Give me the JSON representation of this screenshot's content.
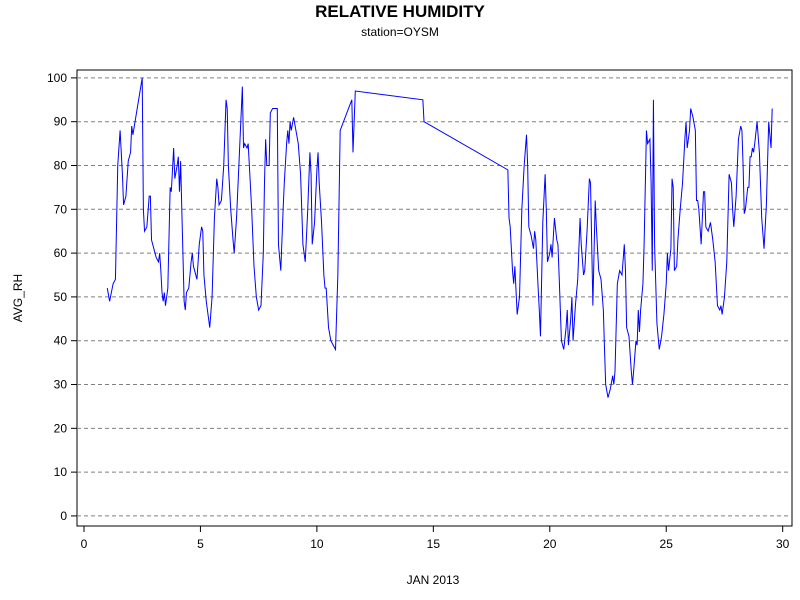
{
  "chart_data": {
    "type": "line",
    "title": "RELATIVE HUMIDITY",
    "subtitle": "station=OYSM",
    "x_label": "JAN 2013",
    "y_label": "AVG_RH",
    "xlim": [
      -0.3,
      30.4
    ],
    "ylim": [
      -2.3,
      101.8
    ],
    "xticks": [
      0,
      5,
      10,
      15,
      20,
      25,
      30
    ],
    "yticks": [
      0,
      10,
      20,
      30,
      40,
      50,
      60,
      70,
      80,
      90,
      100
    ],
    "grid": true,
    "series": [
      {
        "name": "AVG_RH",
        "color": "#0000ff",
        "x": [
          1.0,
          1.1,
          1.25,
          1.35,
          1.45,
          1.55,
          1.65,
          1.7,
          1.8,
          1.9,
          2.0,
          2.05,
          2.1,
          2.5,
          2.55,
          2.6,
          2.7,
          2.8,
          2.85,
          2.9,
          3.0,
          3.1,
          3.2,
          3.25,
          3.3,
          3.35,
          3.4,
          3.45,
          3.5,
          3.6,
          3.7,
          3.75,
          3.85,
          3.9,
          4.0,
          4.05,
          4.1,
          4.15,
          4.2,
          4.3,
          4.35,
          4.4,
          4.5,
          4.6,
          4.65,
          4.7,
          4.8,
          4.85,
          4.95,
          5.05,
          5.1,
          5.15,
          5.25,
          5.35,
          5.4,
          5.5,
          5.6,
          5.7,
          5.75,
          5.8,
          5.9,
          6.0,
          6.1,
          6.15,
          6.2,
          6.3,
          6.4,
          6.45,
          6.55,
          6.7,
          6.8,
          6.85,
          6.9,
          7.0,
          7.05,
          7.1,
          7.2,
          7.3,
          7.4,
          7.5,
          7.6,
          7.7,
          7.75,
          7.8,
          7.85,
          7.95,
          8.0,
          8.1,
          8.3,
          8.35,
          8.45,
          8.55,
          8.6,
          8.7,
          8.75,
          8.8,
          8.85,
          8.9,
          9.0,
          9.1,
          9.2,
          9.3,
          9.35,
          9.4,
          9.5,
          9.6,
          9.7,
          9.75,
          9.8,
          9.9,
          10.0,
          10.05,
          10.1,
          10.2,
          10.3,
          10.35,
          10.4,
          10.5,
          10.6,
          10.7,
          10.8,
          10.9,
          11.0,
          11.5,
          11.55,
          11.65,
          14.55,
          14.6,
          18.2,
          18.25,
          18.3,
          18.4,
          18.45,
          18.5,
          18.6,
          18.7,
          18.8,
          18.9,
          19.0,
          19.05,
          19.1,
          19.2,
          19.3,
          19.35,
          19.4,
          19.5,
          19.55,
          19.6,
          19.7,
          19.8,
          19.85,
          19.9,
          20.0,
          20.05,
          20.1,
          20.2,
          20.3,
          20.35,
          20.4,
          20.5,
          20.6,
          20.7,
          20.75,
          20.8,
          20.9,
          20.95,
          21.0,
          21.1,
          21.2,
          21.3,
          21.35,
          21.45,
          21.5,
          21.6,
          21.7,
          21.75,
          21.8,
          21.85,
          21.9,
          21.95,
          22.0,
          22.1,
          22.2,
          22.3,
          22.35,
          22.4,
          22.5,
          22.6,
          22.7,
          22.75,
          22.8,
          22.9,
          23.0,
          23.1,
          23.2,
          23.25,
          23.3,
          23.4,
          23.5,
          23.55,
          23.6,
          23.7,
          23.75,
          23.8,
          23.85,
          23.9,
          24.0,
          24.05,
          24.15,
          24.2,
          24.3,
          24.35,
          24.4,
          24.45,
          24.5,
          24.6,
          24.7,
          24.8,
          24.9,
          25.0,
          25.05,
          25.1,
          25.2,
          25.25,
          25.3,
          25.35,
          25.45,
          25.5,
          25.6,
          25.7,
          25.8,
          25.85,
          25.9,
          26.0,
          26.05,
          26.15,
          26.25,
          26.3,
          26.35,
          26.4,
          26.5,
          26.6,
          26.65,
          26.7,
          26.8,
          26.9,
          27.0,
          27.1,
          27.2,
          27.3,
          27.35,
          27.4,
          27.5,
          27.6,
          27.7,
          27.8,
          27.85,
          27.9,
          28.0,
          28.1,
          28.2,
          28.25,
          28.3,
          28.35,
          28.4,
          28.5,
          28.55,
          28.6,
          28.65,
          28.7,
          28.75,
          28.8,
          28.9,
          29.0,
          29.1,
          29.2,
          29.3,
          29.4,
          29.45,
          29.5,
          29.55
        ],
        "values": [
          52,
          49,
          53,
          54,
          80,
          88,
          78,
          71,
          73,
          81,
          83,
          89,
          87,
          100,
          70,
          65,
          66,
          73,
          73,
          63,
          61,
          59,
          58,
          60,
          56,
          51,
          49,
          51,
          48,
          52,
          75,
          74,
          84,
          77,
          80,
          82,
          74,
          81,
          70,
          49,
          47,
          51,
          52,
          58,
          60,
          57,
          55,
          54,
          62,
          66,
          65,
          55,
          49,
          45,
          43,
          50,
          68,
          77,
          75,
          71,
          72,
          80,
          95,
          93,
          80,
          70,
          63,
          60,
          68,
          86,
          98,
          84,
          85,
          84,
          85,
          80,
          70,
          57,
          50,
          47,
          48,
          60,
          76,
          86,
          80,
          80,
          92,
          93,
          93,
          62,
          56,
          70,
          76,
          85,
          88,
          85,
          90,
          88,
          91,
          88,
          85,
          78,
          70,
          62,
          58,
          69,
          83,
          78,
          62,
          67,
          79,
          83,
          76,
          67,
          55,
          52,
          52,
          43,
          40,
          39,
          38,
          55,
          88,
          95,
          83,
          97,
          95,
          90,
          79,
          68,
          66,
          56,
          53,
          57,
          46,
          50,
          70,
          80,
          87,
          80,
          66,
          64,
          61,
          65,
          63,
          52,
          47,
          41,
          67,
          78,
          70,
          58,
          60,
          62,
          59,
          68,
          63,
          62,
          55,
          40,
          38,
          43,
          47,
          39,
          45,
          50,
          40,
          48,
          54,
          68,
          62,
          55,
          56,
          65,
          77,
          76,
          62,
          48,
          60,
          72,
          66,
          56,
          54,
          47,
          38,
          30,
          27,
          29,
          32,
          30,
          33,
          53,
          56,
          55,
          62,
          56,
          43,
          41,
          33,
          30,
          33,
          40,
          39,
          47,
          42,
          47,
          53,
          62,
          88,
          85,
          86,
          76,
          56,
          95,
          62,
          44,
          38,
          41,
          46,
          53,
          60,
          56,
          61,
          77,
          75,
          56,
          57,
          63,
          70,
          76,
          86,
          90,
          84,
          88,
          93,
          91,
          88,
          72,
          72,
          70,
          62,
          74,
          74,
          66,
          65,
          67,
          63,
          58,
          48,
          47,
          48,
          46,
          50,
          58,
          78,
          76,
          70,
          66,
          73,
          86,
          89,
          88,
          80,
          69,
          70,
          75,
          75,
          82,
          82,
          84,
          83,
          85,
          90,
          83,
          68,
          61,
          71,
          90,
          87,
          84,
          93
        ]
      }
    ]
  }
}
